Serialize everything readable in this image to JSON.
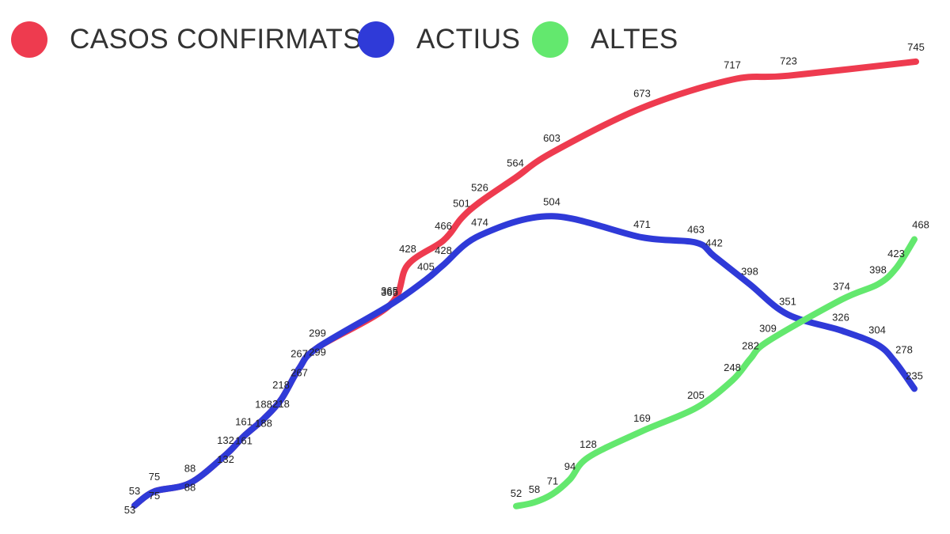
{
  "chart_data": {
    "type": "line",
    "legend_position": "top-left",
    "grid": false,
    "series": [
      {
        "name": "CASOS CONFIRMATS",
        "color": "#ee3b4f",
        "points": [
          {
            "x": 1,
            "y": 53
          },
          {
            "x": 2,
            "y": 75
          },
          {
            "x": 3,
            "y": 88
          },
          {
            "x": 4,
            "y": 132
          },
          {
            "x": 5,
            "y": 161
          },
          {
            "x": 6,
            "y": 188
          },
          {
            "x": 7,
            "y": 218
          },
          {
            "x": 8,
            "y": 267
          },
          {
            "x": 9,
            "y": 299
          },
          {
            "x": 10,
            "y": 365
          },
          {
            "x": 11,
            "y": 428
          },
          {
            "x": 12,
            "y": 466
          },
          {
            "x": 13,
            "y": 501
          },
          {
            "x": 14,
            "y": 526
          },
          {
            "x": 15,
            "y": 564
          },
          {
            "x": 16,
            "y": 603
          },
          {
            "x": 17,
            "y": 673
          },
          {
            "x": 18,
            "y": 717
          },
          {
            "x": 19,
            "y": 723
          },
          {
            "x": 20,
            "y": 745
          }
        ]
      },
      {
        "name": "ACTIUS",
        "color": "#2f3ad8",
        "points": [
          {
            "x": 1,
            "y": 53
          },
          {
            "x": 2,
            "y": 75
          },
          {
            "x": 3,
            "y": 88
          },
          {
            "x": 4,
            "y": 132
          },
          {
            "x": 5,
            "y": 161
          },
          {
            "x": 6,
            "y": 188
          },
          {
            "x": 7,
            "y": 218
          },
          {
            "x": 8,
            "y": 267
          },
          {
            "x": 9,
            "y": 299
          },
          {
            "x": 10,
            "y": 365
          },
          {
            "x": 11,
            "y": 405
          },
          {
            "x": 12,
            "y": 428
          },
          {
            "x": 13,
            "y": 474
          },
          {
            "x": 14,
            "y": 504
          },
          {
            "x": 15,
            "y": 471
          },
          {
            "x": 16,
            "y": 463
          },
          {
            "x": 17,
            "y": 442
          },
          {
            "x": 18,
            "y": 398
          },
          {
            "x": 19,
            "y": 351
          },
          {
            "x": 20,
            "y": 326
          },
          {
            "x": 21,
            "y": 304
          },
          {
            "x": 22,
            "y": 278
          },
          {
            "x": 23,
            "y": 235
          }
        ]
      },
      {
        "name": "ALTES",
        "color": "#63e86e",
        "points": [
          {
            "x": 1,
            "y": 52
          },
          {
            "x": 2,
            "y": 58
          },
          {
            "x": 3,
            "y": 71
          },
          {
            "x": 4,
            "y": 94
          },
          {
            "x": 5,
            "y": 128
          },
          {
            "x": 6,
            "y": 169
          },
          {
            "x": 7,
            "y": 205
          },
          {
            "x": 8,
            "y": 248
          },
          {
            "x": 9,
            "y": 282
          },
          {
            "x": 10,
            "y": 309
          },
          {
            "x": 11,
            "y": 374
          },
          {
            "x": 12,
            "y": 398
          },
          {
            "x": 13,
            "y": 423
          },
          {
            "x": 14,
            "y": 468
          }
        ]
      }
    ]
  }
}
